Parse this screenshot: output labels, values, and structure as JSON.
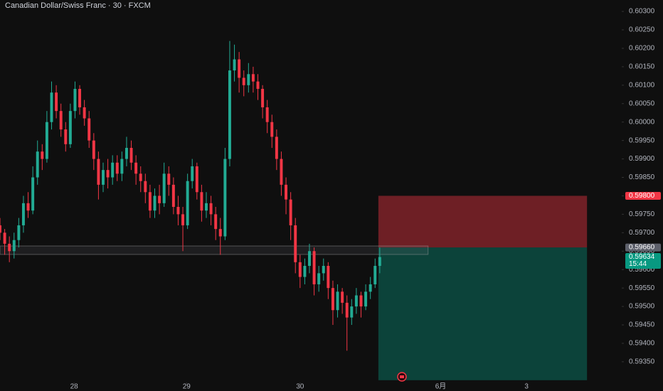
{
  "chart_data": {
    "type": "candlestick",
    "title": "Canadian Dollar/Swiss Franc · 30 · FXCM",
    "up_color": "#22ab94",
    "down_color": "#f23645",
    "candles": [
      [
        0.5972,
        0.5974,
        0.5968,
        0.597
      ],
      [
        0.597,
        0.5971,
        0.5964,
        0.5967
      ],
      [
        0.5967,
        0.5969,
        0.5962,
        0.5965
      ],
      [
        0.5965,
        0.597,
        0.5963,
        0.5968
      ],
      [
        0.5968,
        0.5974,
        0.5966,
        0.5972
      ],
      [
        0.5972,
        0.598,
        0.597,
        0.5978
      ],
      [
        0.5978,
        0.5981,
        0.5974,
        0.5976
      ],
      [
        0.5976,
        0.5988,
        0.5975,
        0.5985
      ],
      [
        0.5985,
        0.5995,
        0.5983,
        0.5992
      ],
      [
        0.5992,
        0.5994,
        0.5987,
        0.599
      ],
      [
        0.599,
        0.6003,
        0.5989,
        0.6
      ],
      [
        0.6,
        0.6011,
        0.5998,
        0.6008
      ],
      [
        0.6008,
        0.601,
        0.6001,
        0.6003
      ],
      [
        0.6003,
        0.6005,
        0.5996,
        0.5998
      ],
      [
        0.5998,
        0.6,
        0.5992,
        0.5994
      ],
      [
        0.5994,
        0.6005,
        0.5993,
        0.6003
      ],
      [
        0.6003,
        0.6011,
        0.6001,
        0.6009
      ],
      [
        0.6009,
        0.601,
        0.6002,
        0.6004
      ],
      [
        0.6004,
        0.6006,
        0.5999,
        0.6001
      ],
      [
        0.6001,
        0.6003,
        0.5993,
        0.5995
      ],
      [
        0.5995,
        0.5997,
        0.5987,
        0.599
      ],
      [
        0.599,
        0.5992,
        0.5979,
        0.5983
      ],
      [
        0.5983,
        0.5989,
        0.5981,
        0.5987
      ],
      [
        0.5987,
        0.599,
        0.5982,
        0.5985
      ],
      [
        0.5985,
        0.5991,
        0.5983,
        0.5989
      ],
      [
        0.5989,
        0.5991,
        0.5984,
        0.5986
      ],
      [
        0.5986,
        0.5992,
        0.5984,
        0.599
      ],
      [
        0.599,
        0.5996,
        0.5988,
        0.5993
      ],
      [
        0.5993,
        0.5995,
        0.5987,
        0.5989
      ],
      [
        0.5989,
        0.5991,
        0.5983,
        0.5986
      ],
      [
        0.5986,
        0.5988,
        0.5981,
        0.5984
      ],
      [
        0.5984,
        0.5986,
        0.5978,
        0.5981
      ],
      [
        0.5981,
        0.5983,
        0.5974,
        0.5976
      ],
      [
        0.5976,
        0.5982,
        0.5974,
        0.598
      ],
      [
        0.598,
        0.5983,
        0.5975,
        0.5978
      ],
      [
        0.5978,
        0.5989,
        0.5977,
        0.5986
      ],
      [
        0.5986,
        0.5988,
        0.598,
        0.5983
      ],
      [
        0.5983,
        0.5985,
        0.5975,
        0.5977
      ],
      [
        0.5977,
        0.598,
        0.5972,
        0.5975
      ],
      [
        0.5975,
        0.5977,
        0.5965,
        0.5972
      ],
      [
        0.5972,
        0.5986,
        0.5971,
        0.5984
      ],
      [
        0.5984,
        0.599,
        0.5982,
        0.5988
      ],
      [
        0.5988,
        0.5989,
        0.5979,
        0.5981
      ],
      [
        0.5981,
        0.5983,
        0.5973,
        0.5976
      ],
      [
        0.5976,
        0.5981,
        0.5974,
        0.5978
      ],
      [
        0.5978,
        0.598,
        0.5972,
        0.5975
      ],
      [
        0.5975,
        0.5977,
        0.5968,
        0.5971
      ],
      [
        0.5971,
        0.5974,
        0.5964,
        0.5969
      ],
      [
        0.5969,
        0.5993,
        0.5968,
        0.599
      ],
      [
        0.599,
        0.6022,
        0.5988,
        0.6014
      ],
      [
        0.6014,
        0.6021,
        0.6011,
        0.6017
      ],
      [
        0.6017,
        0.6019,
        0.6008,
        0.6012
      ],
      [
        0.6012,
        0.6014,
        0.6007,
        0.601
      ],
      [
        0.601,
        0.6016,
        0.6008,
        0.6013
      ],
      [
        0.6013,
        0.6015,
        0.6008,
        0.6011
      ],
      [
        0.6011,
        0.6013,
        0.6006,
        0.6009
      ],
      [
        0.6009,
        0.601,
        0.6001,
        0.6004
      ],
      [
        0.6004,
        0.6006,
        0.5997,
        0.6
      ],
      [
        0.6,
        0.6002,
        0.5993,
        0.5996
      ],
      [
        0.5996,
        0.5998,
        0.5987,
        0.599
      ],
      [
        0.599,
        0.5992,
        0.598,
        0.5983
      ],
      [
        0.5983,
        0.5985,
        0.5975,
        0.5979
      ],
      [
        0.5979,
        0.5981,
        0.5968,
        0.5972
      ],
      [
        0.5972,
        0.5974,
        0.5959,
        0.5962
      ],
      [
        0.5962,
        0.5964,
        0.5955,
        0.5958
      ],
      [
        0.5958,
        0.5963,
        0.5956,
        0.5961
      ],
      [
        0.5961,
        0.5967,
        0.5959,
        0.5965
      ],
      [
        0.5965,
        0.5966,
        0.5953,
        0.5956
      ],
      [
        0.5956,
        0.5961,
        0.5954,
        0.5959
      ],
      [
        0.5959,
        0.5963,
        0.5957,
        0.5961
      ],
      [
        0.5961,
        0.5962,
        0.5952,
        0.5955
      ],
      [
        0.5955,
        0.5957,
        0.5945,
        0.5949
      ],
      [
        0.5949,
        0.5956,
        0.5947,
        0.5954
      ],
      [
        0.5954,
        0.5955,
        0.5948,
        0.5951
      ],
      [
        0.5951,
        0.5953,
        0.5938,
        0.5947
      ],
      [
        0.5947,
        0.5952,
        0.5945,
        0.595
      ],
      [
        0.595,
        0.5955,
        0.5948,
        0.5953
      ],
      [
        0.5953,
        0.5954,
        0.5947,
        0.595
      ],
      [
        0.595,
        0.5956,
        0.5949,
        0.5954
      ],
      [
        0.5954,
        0.5958,
        0.5952,
        0.5956
      ],
      [
        0.5956,
        0.5963,
        0.5955,
        0.5961
      ],
      [
        0.5961,
        0.5966,
        0.5959,
        0.59634
      ]
    ],
    "xlim": [
      0,
      132
    ],
    "xticks": [
      {
        "value": 15.8,
        "label": "28"
      },
      {
        "value": 39.8,
        "label": "29"
      },
      {
        "value": 64,
        "label": "30"
      },
      {
        "value": 94,
        "label": "6月"
      },
      {
        "value": 112.3,
        "label": "3"
      }
    ],
    "ylim": [
      0.5929,
      0.60331
    ],
    "yticks": [
      {
        "value": 0.603,
        "label": "0.60300"
      },
      {
        "value": 0.6025,
        "label": "0.60250"
      },
      {
        "value": 0.602,
        "label": "0.60200"
      },
      {
        "value": 0.6015,
        "label": "0.60150"
      },
      {
        "value": 0.601,
        "label": "0.60100"
      },
      {
        "value": 0.6005,
        "label": "0.60050"
      },
      {
        "value": 0.6,
        "label": "0.60000"
      },
      {
        "value": 0.5995,
        "label": "0.59950"
      },
      {
        "value": 0.599,
        "label": "0.59900"
      },
      {
        "value": 0.5985,
        "label": "0.59850"
      },
      {
        "value": 0.598,
        "label": "0.59800"
      },
      {
        "value": 0.5975,
        "label": "0.59750"
      },
      {
        "value": 0.597,
        "label": "0.59700"
      },
      {
        "value": 0.5965,
        "label": "0.59650"
      },
      {
        "value": 0.596,
        "label": "0.59600"
      },
      {
        "value": 0.5955,
        "label": "0.59550"
      },
      {
        "value": 0.595,
        "label": "0.59500"
      },
      {
        "value": 0.5945,
        "label": "0.59450"
      },
      {
        "value": 0.594,
        "label": "0.59400"
      },
      {
        "value": 0.5935,
        "label": "0.59350"
      }
    ],
    "zone": {
      "top": 0.59664,
      "bottom": 0.59641,
      "start": 0,
      "end": 91.3
    },
    "position": {
      "start": 80.7,
      "end": 125.2,
      "target": 0.593,
      "stop": {
        "value": 0.598,
        "label": "0.59800"
      },
      "entry": {
        "value": 0.5966,
        "label": "0.59660"
      }
    },
    "last_price": {
      "value": 0.59634,
      "label": "0.59634",
      "countdown": "15:44"
    }
  }
}
